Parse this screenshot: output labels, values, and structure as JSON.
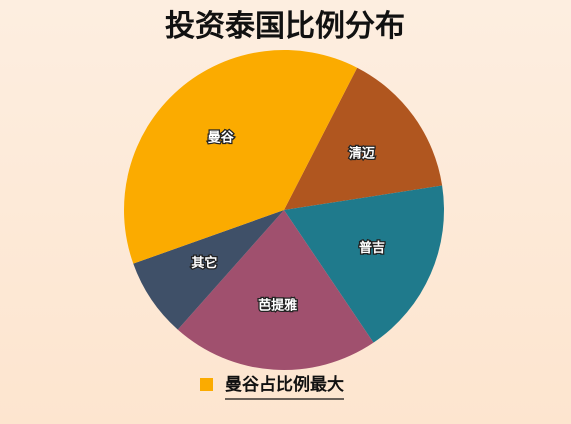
{
  "chart_data": {
    "type": "pie",
    "title": "投资泰国比例分布",
    "categories": [
      "清迈",
      "普吉",
      "芭提雅",
      "其它",
      "曼谷"
    ],
    "values": [
      15,
      18,
      21,
      8,
      38
    ],
    "colors": [
      "#b0561f",
      "#1f7a8c",
      "#a0506e",
      "#3f5068",
      "#fbab00"
    ],
    "annotation": "曼谷占比例最大",
    "annotation_color": "#fbab00"
  }
}
